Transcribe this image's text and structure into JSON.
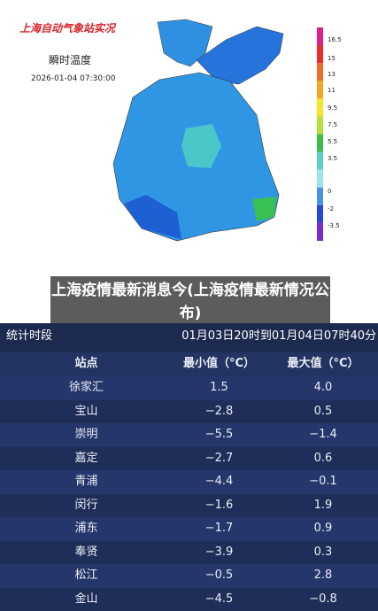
{
  "map": {
    "title": "上海自动气象站实况",
    "subtitle": "瞬时温度",
    "time": "2026-01-04 07:30:00",
    "legend": [
      "16.5",
      "15",
      "13",
      "11",
      "9.5",
      "7.5",
      "5.5",
      "3.5",
      "0",
      "-2",
      "-3.5"
    ]
  },
  "banner": "上海疫情最新消息今(上海疫情最新情况公布)",
  "table": {
    "period_label": "统计时段",
    "period": "01月03日20时到01月04日07时40分",
    "header": [
      "站点",
      "最小值（°C）",
      "最大值（°C）"
    ],
    "rows": [
      [
        "徐家汇",
        "1.5",
        "4.0"
      ],
      [
        "宝山",
        "−2.8",
        "0.5"
      ],
      [
        "崇明",
        "−5.5",
        "−1.4"
      ],
      [
        "嘉定",
        "−2.7",
        "0.6"
      ],
      [
        "青浦",
        "−4.4",
        "−0.1"
      ],
      [
        "闵行",
        "−1.6",
        "1.9"
      ],
      [
        "浦东",
        "−1.7",
        "0.9"
      ],
      [
        "奉贤",
        "−3.9",
        "0.3"
      ],
      [
        "松江",
        "−0.5",
        "2.8"
      ],
      [
        "金山",
        "−4.5",
        "−0.8"
      ]
    ]
  }
}
